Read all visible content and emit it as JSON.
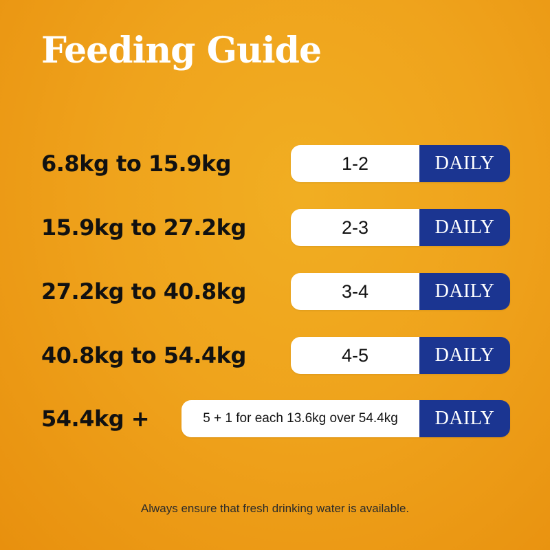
{
  "title": "Feeding Guide",
  "rows": [
    {
      "weight": "6.8kg to 15.9kg",
      "amount": "1-2",
      "frequency": "DAILY"
    },
    {
      "weight": "15.9kg to 27.2kg",
      "amount": "2-3",
      "frequency": "DAILY"
    },
    {
      "weight": "27.2kg to 40.8kg",
      "amount": "3-4",
      "frequency": "DAILY"
    },
    {
      "weight": "40.8kg to 54.4kg",
      "amount": "4-5",
      "frequency": "DAILY"
    },
    {
      "weight": "54.4kg +",
      "amount": "5 + 1 for each 13.6kg over 54.4kg",
      "frequency": "DAILY"
    }
  ],
  "note": "Always ensure that fresh drinking water is available.",
  "colors": {
    "background": "#EFA31C",
    "frequency_pill": "#1B3591",
    "amount_pill": "#FFFFFF",
    "title": "#FFFFFF",
    "text": "#111111"
  }
}
